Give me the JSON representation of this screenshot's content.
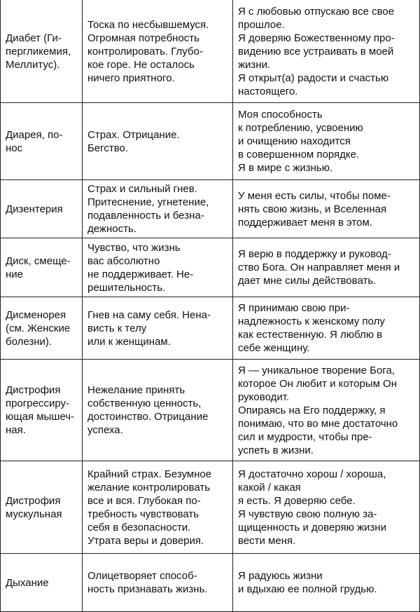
{
  "table": {
    "rows": [
      [
        [
          "Диабет (Ги-",
          "пергликемия,",
          "Меллитус)."
        ],
        [
          "Тоска по несбывшемуся.",
          "Огромная потребность",
          "контролировать. Глубо-",
          "кое горе. Не осталось",
          "ничего приятного."
        ],
        [
          "Я с любовью отпускаю все свое",
          "прошлое.",
          "Я доверяю Божественному про-",
          "видению все устраивать в моей",
          "жизни.",
          "Я открыт(а) радости и счастью",
          "настоящего."
        ]
      ],
      [
        [
          "Диарея, по-",
          "нос"
        ],
        [
          "Страх. Отрицание.",
          "Бегство."
        ],
        [
          "Моя способность",
          "к потреблению, усвоению",
          "и очищению находится",
          "в совершенном порядке.",
          "Я в мире с жизнью."
        ]
      ],
      [
        [
          "Дизентерия"
        ],
        [
          "Страх и сильный гнев.",
          "Притеснение, угнетение,",
          "подавленность и безна-",
          "дежность."
        ],
        [
          "У меня есть силы, чтобы поме-",
          "нять свою жизнь, и Вселенная",
          "поддерживает меня в этом."
        ]
      ],
      [
        [
          "Диск, смеще-",
          "ние"
        ],
        [
          "Чувство, что жизнь",
          "вас абсолютно",
          "не поддерживает. Не-",
          "решительность."
        ],
        [
          "Я верю в поддержку и руковод-",
          "ство Бога. Он направляет меня и",
          "дает мне силы действовать."
        ]
      ],
      [
        [
          "Дисменорея",
          "(см. Женские",
          "болезни)."
        ],
        [
          "Гнев на саму себя. Нена-",
          "висть к телу",
          "или к женщинам."
        ],
        [
          "Я принимаю свою при-",
          "надлежность к женскому полу",
          "как естественную. Я люблю в",
          "себе женщину."
        ]
      ],
      [
        [
          "Дистрофия",
          "прогрессиру-",
          "ющая мышеч-",
          "ная."
        ],
        [
          "Нежелание принять",
          "собственную ценность,",
          "достоинство. Отрицание",
          "успеха."
        ],
        [
          "Я — уникальное творение Бога,",
          "которое Он любит и которым Он",
          "руководит.",
          "Опираясь на Его поддержку, я",
          "понимаю, что во мне достаточно",
          "сил и мудрости, чтобы пре-",
          "успеть в жизни."
        ]
      ],
      [
        [
          "Дистрофия",
          "мускульная"
        ],
        [
          "Крайний страх. Безумное",
          "желание контролировать",
          "все и вся. Глубокая по-",
          "требность чувствовать",
          "себя в безопасности.",
          "Утрата веры и доверия."
        ],
        [
          "Я достаточно хорош / хороша,",
          "какой / какая",
          "я есть. Я доверяю себе.",
          "Я чувствую свою полную за-",
          "щищенность и доверяю жизни",
          "вести меня."
        ]
      ],
      [
        [
          "Дыхание"
        ],
        [
          "Олицетворяет способ-",
          "ность признавать жизнь."
        ],
        [
          "Я радуюсь жизни",
          "и вдыхаю ее полной грудью."
        ]
      ]
    ]
  }
}
